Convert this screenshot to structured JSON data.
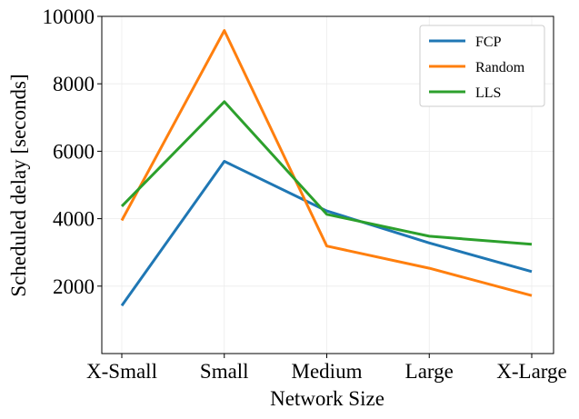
{
  "chart_data": {
    "type": "line",
    "categories": [
      "X-Small",
      "Small",
      "Medium",
      "Large",
      "X-Large"
    ],
    "series": [
      {
        "name": "FCP",
        "color": "#1f77b4",
        "values": [
          1420,
          5700,
          4230,
          3280,
          2430
        ]
      },
      {
        "name": "Random",
        "color": "#ff7f0e",
        "values": [
          3950,
          9580,
          3190,
          2530,
          1720
        ]
      },
      {
        "name": "LLS",
        "color": "#2ca02c",
        "values": [
          4370,
          7470,
          4130,
          3480,
          3240
        ]
      }
    ],
    "xlabel": "Network Size",
    "ylabel": "Scheduled delay [seconds]",
    "ylim": [
      0,
      10000
    ],
    "yticks": [
      "2000",
      "4000",
      "6000",
      "8000",
      "10000"
    ],
    "grid": true,
    "legend_position": "top-right"
  }
}
